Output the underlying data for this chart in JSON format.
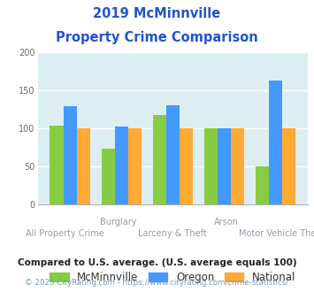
{
  "title_line1": "2019 McMinnville",
  "title_line2": "Property Crime Comparison",
  "title_color": "#2255cc",
  "categories": [
    "All Property Crime",
    "Burglary",
    "Larceny & Theft",
    "Arson",
    "Motor Vehicle Theft"
  ],
  "top_labels": [
    "",
    "Burglary",
    "",
    "Arson",
    ""
  ],
  "bottom_labels": [
    "All Property Crime",
    "",
    "Larceny & Theft",
    "",
    "Motor Vehicle Theft"
  ],
  "mcminnville": [
    104,
    74,
    118,
    100,
    50
  ],
  "oregon": [
    129,
    103,
    130,
    100,
    163
  ],
  "national": [
    100,
    100,
    100,
    100,
    100
  ],
  "mcminnville_color": "#88cc44",
  "oregon_color": "#4499ff",
  "national_color": "#ffaa33",
  "ylim": [
    0,
    200
  ],
  "yticks": [
    0,
    50,
    100,
    150,
    200
  ],
  "plot_bg_color": "#ddeef3",
  "legend_labels": [
    "McMinnville",
    "Oregon",
    "National"
  ],
  "footnote1": "Compared to U.S. average. (U.S. average equals 100)",
  "footnote2": "© 2025 CityRating.com - https://www.cityrating.com/crime-statistics/",
  "footnote1_color": "#222222",
  "footnote2_color": "#7799bb"
}
